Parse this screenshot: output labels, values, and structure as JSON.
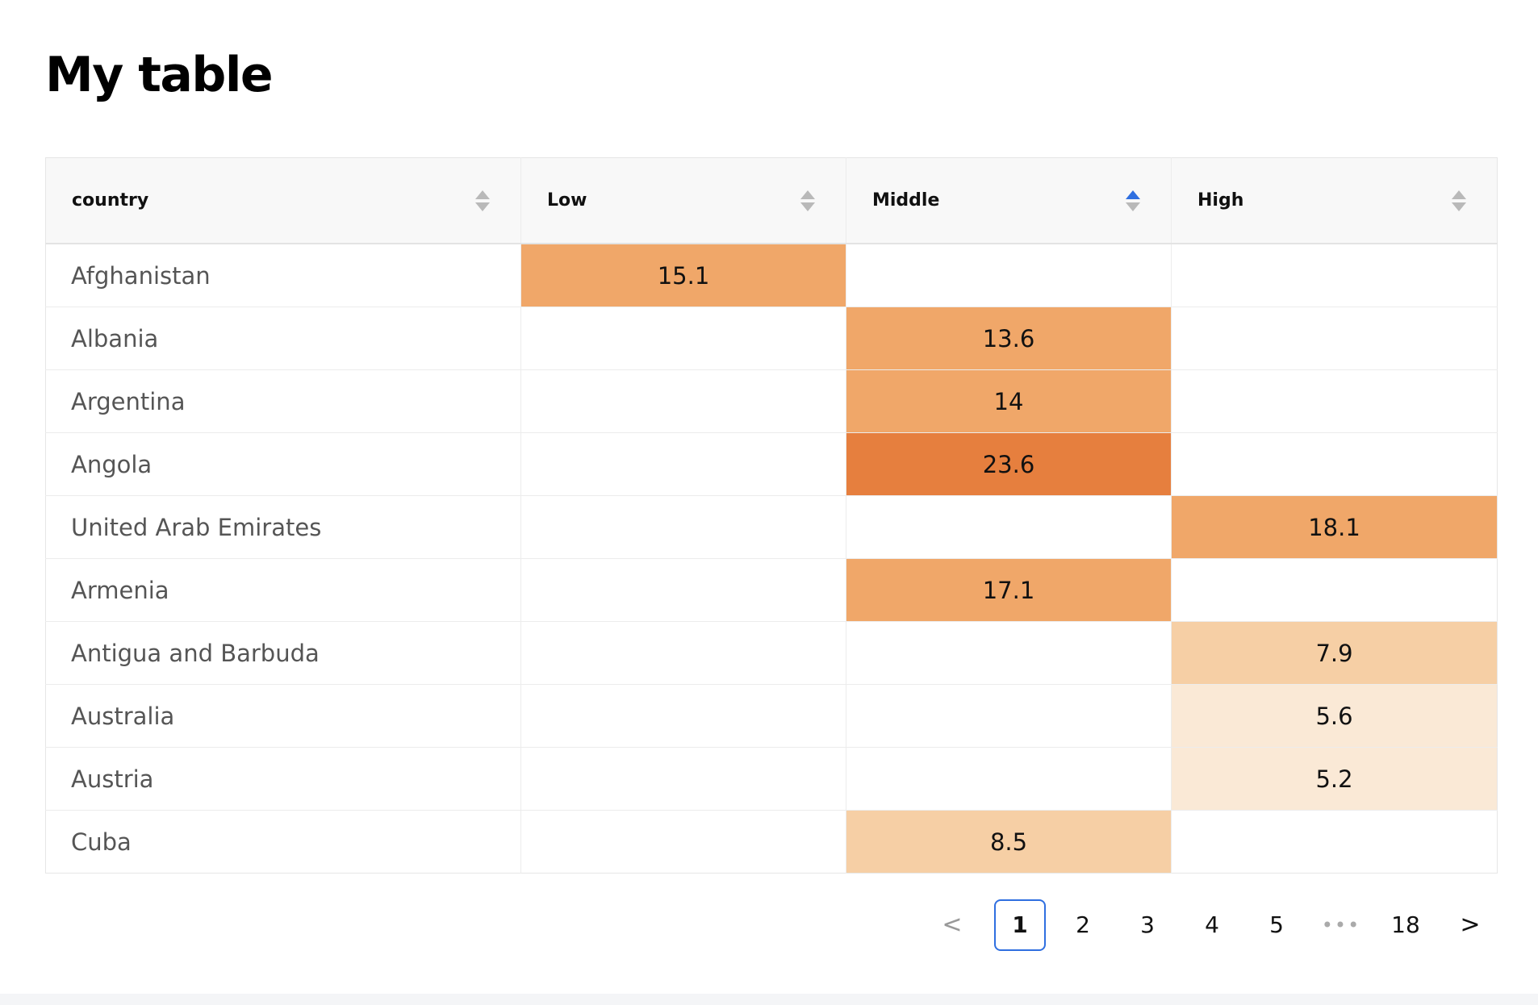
{
  "title": "My table",
  "columns": [
    {
      "label": "country",
      "sort": "none"
    },
    {
      "label": "Low",
      "sort": "none"
    },
    {
      "label": "Middle",
      "sort": "asc"
    },
    {
      "label": "High",
      "sort": "none"
    }
  ],
  "rows": [
    {
      "country": "Afghanistan",
      "low": "15.1",
      "middle": "",
      "high": ""
    },
    {
      "country": "Albania",
      "low": "",
      "middle": "13.6",
      "high": ""
    },
    {
      "country": "Argentina",
      "low": "",
      "middle": "14",
      "high": ""
    },
    {
      "country": "Angola",
      "low": "",
      "middle": "23.6",
      "high": ""
    },
    {
      "country": "United Arab Emirates",
      "low": "",
      "middle": "",
      "high": "18.1"
    },
    {
      "country": "Armenia",
      "low": "",
      "middle": "17.1",
      "high": ""
    },
    {
      "country": "Antigua and Barbuda",
      "low": "",
      "middle": "",
      "high": "7.9"
    },
    {
      "country": "Australia",
      "low": "",
      "middle": "",
      "high": "5.6"
    },
    {
      "country": "Austria",
      "low": "",
      "middle": "",
      "high": "5.2"
    },
    {
      "country": "Cuba",
      "low": "",
      "middle": "8.5",
      "high": ""
    }
  ],
  "heat_colors": {
    "darkest": "#e67f3e",
    "dark": "#f0a769",
    "light": "#f6cfa5",
    "lightest": "#fae9d6"
  },
  "pagination": {
    "prev": "<",
    "pages": [
      "1",
      "2",
      "3",
      "4",
      "5"
    ],
    "ellipsis": "•••",
    "last": "18",
    "next": ">",
    "current": "1"
  }
}
